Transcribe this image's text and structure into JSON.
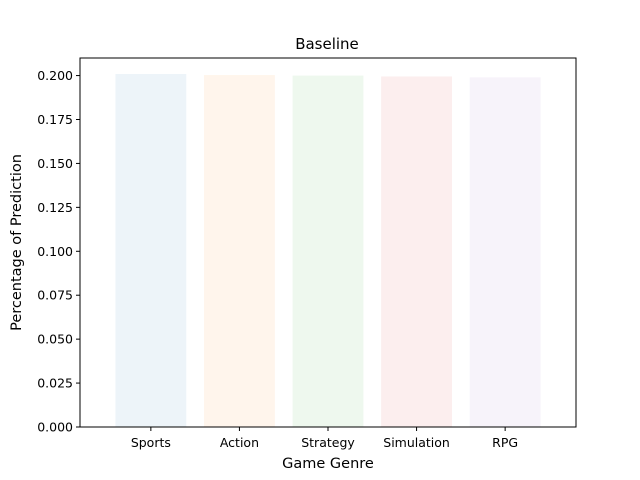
{
  "chart_data": {
    "type": "bar",
    "title": "Baseline",
    "xlabel": "Game Genre",
    "ylabel": "Percentage of Prediction",
    "categories": [
      "Sports",
      "Action",
      "Strategy",
      "Simulation",
      "RPG"
    ],
    "values": [
      0.2009,
      0.2003,
      0.2,
      0.1995,
      0.199
    ],
    "colors": [
      "#1f77b4",
      "#ff7f0e",
      "#2ca02c",
      "#d62728",
      "#9467bd"
    ],
    "bar_opacity": 0.08,
    "ylim": [
      0,
      0.21
    ],
    "yticks": [
      0.0,
      0.025,
      0.05,
      0.075,
      0.1,
      0.125,
      0.15,
      0.175,
      0.2
    ],
    "ytick_labels": [
      "0.000",
      "0.025",
      "0.050",
      "0.075",
      "0.100",
      "0.125",
      "0.150",
      "0.175",
      "0.200"
    ],
    "grid": false,
    "legend": "none"
  }
}
